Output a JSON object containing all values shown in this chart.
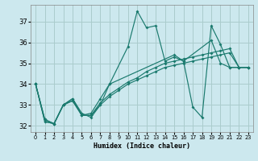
{
  "xlabel": "Humidex (Indice chaleur)",
  "background_color": "#cce8ee",
  "grid_color": "#aacccc",
  "line_color": "#1a7a6e",
  "xlim": [
    -0.5,
    23.5
  ],
  "ylim": [
    31.7,
    37.8
  ],
  "yticks": [
    32,
    33,
    34,
    35,
    36,
    37
  ],
  "xticks": [
    0,
    1,
    2,
    3,
    4,
    5,
    6,
    7,
    8,
    9,
    10,
    11,
    12,
    13,
    14,
    15,
    16,
    17,
    18,
    19,
    20,
    21,
    22,
    23
  ],
  "series": [
    {
      "x": [
        0,
        1,
        2,
        3,
        4,
        5,
        6,
        7,
        8,
        10,
        11,
        12,
        13,
        14,
        15,
        16,
        19,
        20,
        21,
        22,
        23
      ],
      "y": [
        34.0,
        32.2,
        32.1,
        33.0,
        33.3,
        32.6,
        32.4,
        33.0,
        34.0,
        35.8,
        37.5,
        36.7,
        36.8,
        35.1,
        35.3,
        35.1,
        36.1,
        35.0,
        34.8,
        34.8,
        34.8
      ]
    },
    {
      "x": [
        0,
        1,
        2,
        3,
        4,
        5,
        6,
        7,
        8,
        15,
        16,
        17,
        18,
        19,
        20,
        21,
        22,
        23
      ],
      "y": [
        34.0,
        32.2,
        32.1,
        33.0,
        33.3,
        32.5,
        32.6,
        33.3,
        34.0,
        35.4,
        35.1,
        32.9,
        32.4,
        36.8,
        35.9,
        34.8,
        34.8,
        34.8
      ]
    },
    {
      "x": [
        0,
        1,
        2,
        3,
        4,
        5,
        6,
        7,
        8,
        9,
        10,
        11,
        12,
        13,
        14,
        15,
        16,
        17,
        18,
        19,
        20,
        21,
        22,
        23
      ],
      "y": [
        34.0,
        32.3,
        32.1,
        33.0,
        33.2,
        32.5,
        32.5,
        33.1,
        33.5,
        33.8,
        34.1,
        34.3,
        34.6,
        34.8,
        35.0,
        35.1,
        35.2,
        35.3,
        35.4,
        35.5,
        35.6,
        35.7,
        34.8,
        34.8
      ]
    },
    {
      "x": [
        0,
        1,
        2,
        3,
        4,
        5,
        6,
        7,
        8,
        9,
        10,
        11,
        12,
        13,
        14,
        15,
        16,
        17,
        18,
        19,
        20,
        21,
        22,
        23
      ],
      "y": [
        34.0,
        32.3,
        32.1,
        33.0,
        33.2,
        32.5,
        32.5,
        33.0,
        33.4,
        33.7,
        34.0,
        34.2,
        34.4,
        34.6,
        34.8,
        34.9,
        35.0,
        35.1,
        35.2,
        35.3,
        35.4,
        35.5,
        34.8,
        34.8
      ]
    }
  ]
}
